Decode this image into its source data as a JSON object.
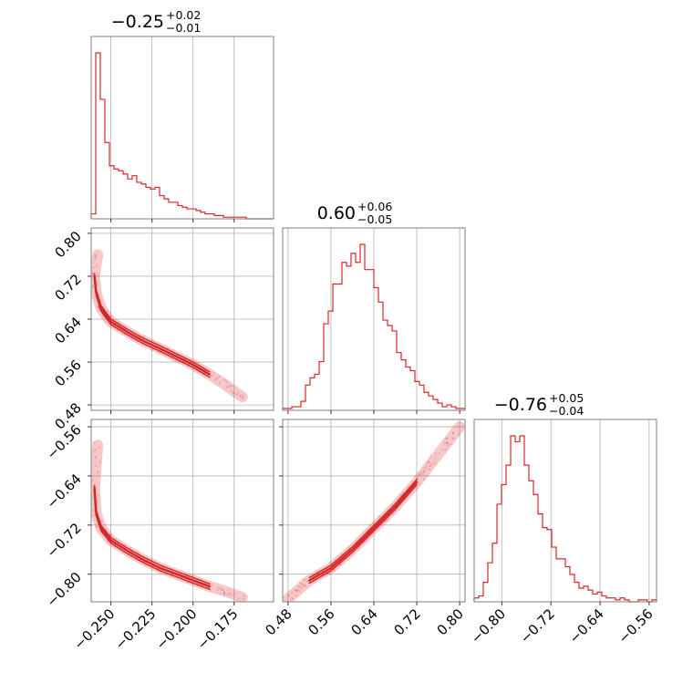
{
  "chart_data": {
    "type": "corner",
    "color": "#d62728",
    "parameters": [
      {
        "title": {
          "median": "−0.25",
          "plus": "+0.02",
          "minus": "−0.01"
        },
        "range": [
          -0.262,
          -0.151
        ],
        "ticks": [
          -0.25,
          -0.225,
          -0.2,
          -0.175
        ],
        "tick_labels": [
          "−0.250",
          "−0.225",
          "−0.200",
          "−0.175"
        ],
        "hist_counts": [
          3,
          100,
          72,
          46,
          32,
          30,
          29,
          27,
          24,
          26,
          22,
          21,
          19,
          18,
          19,
          14,
          12,
          10,
          10,
          8,
          7,
          6,
          6,
          5,
          4,
          3,
          3,
          2,
          2,
          1,
          1,
          1,
          1,
          1,
          0,
          0,
          0,
          0,
          0,
          0
        ]
      },
      {
        "title": {
          "median": "0.60",
          "plus": "+0.06",
          "minus": "−0.05"
        },
        "range": [
          0.47,
          0.81
        ],
        "ticks": [
          0.48,
          0.56,
          0.64,
          0.72,
          0.8
        ],
        "tick_labels": [
          "0.48",
          "0.56",
          "0.64",
          "0.72",
          "0.80"
        ],
        "hist_counts": [
          1,
          1,
          2,
          2,
          5,
          14,
          18,
          20,
          27,
          48,
          55,
          70,
          70,
          82,
          80,
          87,
          82,
          92,
          78,
          78,
          68,
          60,
          50,
          47,
          44,
          32,
          28,
          24,
          22,
          16,
          14,
          10,
          8,
          6,
          4,
          2,
          3,
          2,
          1,
          1
        ]
      },
      {
        "title": {
          "median": "−0.76",
          "plus": "+0.05",
          "minus": "−0.04"
        },
        "range": [
          -0.845,
          -0.548
        ],
        "ticks": [
          -0.8,
          -0.72,
          -0.64,
          -0.56
        ],
        "tick_labels": [
          "−0.80",
          "−0.72",
          "−0.64",
          "−0.56"
        ],
        "hist_counts": [
          2,
          3,
          10,
          20,
          30,
          50,
          60,
          70,
          85,
          82,
          85,
          70,
          62,
          55,
          45,
          38,
          37,
          28,
          22,
          22,
          18,
          14,
          10,
          7,
          8,
          6,
          4,
          5,
          3,
          2,
          2,
          1,
          2,
          1,
          0,
          0,
          1,
          1,
          0,
          1
        ]
      }
    ],
    "pairs": [
      {
        "x_param": 0,
        "y_param": 1,
        "ridge": [
          [
            -0.258,
            0.76
          ],
          [
            -0.26,
            0.72
          ],
          [
            -0.259,
            0.69
          ],
          [
            -0.256,
            0.66
          ],
          [
            -0.25,
            0.635
          ],
          [
            -0.24,
            0.616
          ],
          [
            -0.23,
            0.599
          ],
          [
            -0.22,
            0.585
          ],
          [
            -0.21,
            0.57
          ],
          [
            -0.2,
            0.555
          ],
          [
            -0.19,
            0.537
          ],
          [
            -0.18,
            0.517
          ],
          [
            -0.17,
            0.495
          ]
        ]
      },
      {
        "x_param": 0,
        "y_param": 2,
        "ridge": [
          [
            -0.258,
            -0.59
          ],
          [
            -0.26,
            -0.66
          ],
          [
            -0.259,
            -0.7
          ],
          [
            -0.256,
            -0.725
          ],
          [
            -0.25,
            -0.745
          ],
          [
            -0.24,
            -0.762
          ],
          [
            -0.23,
            -0.777
          ],
          [
            -0.22,
            -0.79
          ],
          [
            -0.21,
            -0.8
          ],
          [
            -0.2,
            -0.81
          ],
          [
            -0.19,
            -0.82
          ],
          [
            -0.18,
            -0.828
          ],
          [
            -0.17,
            -0.838
          ]
        ]
      },
      {
        "x_param": 1,
        "y_param": 2,
        "ridge": [
          [
            0.48,
            -0.84
          ],
          [
            0.52,
            -0.81
          ],
          [
            0.56,
            -0.79
          ],
          [
            0.6,
            -0.76
          ],
          [
            0.64,
            -0.725
          ],
          [
            0.68,
            -0.69
          ],
          [
            0.72,
            -0.65
          ],
          [
            0.76,
            -0.605
          ],
          [
            0.8,
            -0.56
          ]
        ]
      }
    ]
  }
}
